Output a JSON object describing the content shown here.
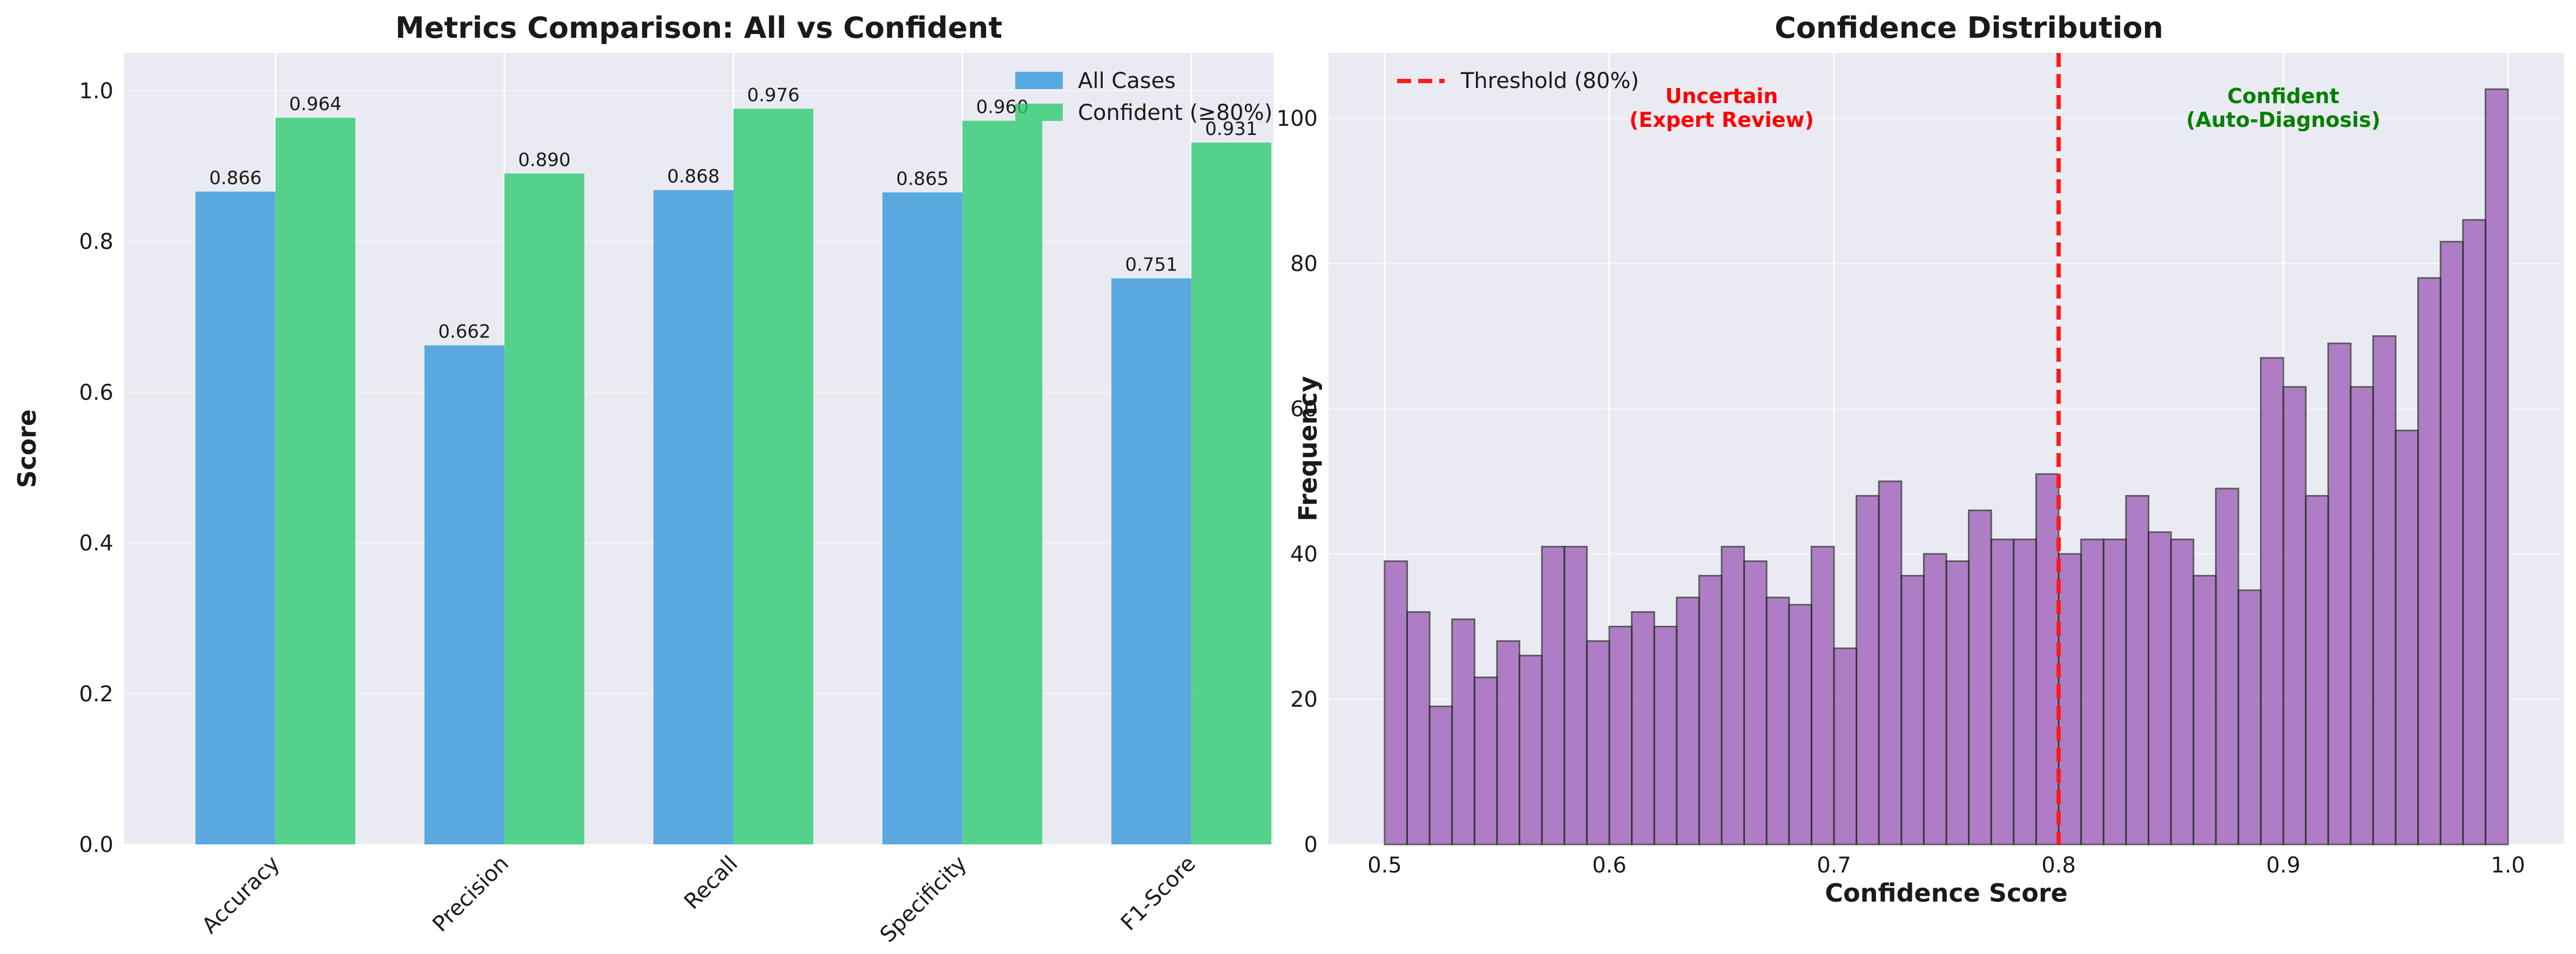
{
  "chart_data": [
    {
      "type": "bar",
      "title": "Metrics Comparison: All vs Confident",
      "xlabel": "",
      "ylabel": "Score",
      "ylim": [
        0,
        1.05
      ],
      "yticks": [
        "0.0",
        "0.2",
        "0.4",
        "0.6",
        "0.8",
        "1.0"
      ],
      "categories": [
        "Accuracy",
        "Precision",
        "Recall",
        "Specificity",
        "F1-Score"
      ],
      "series": [
        {
          "name": "All Cases",
          "color": "#3498db",
          "values": [
            0.866,
            0.662,
            0.868,
            0.865,
            0.751
          ],
          "labels": [
            "0.866",
            "0.662",
            "0.868",
            "0.865",
            "0.751"
          ]
        },
        {
          "name": "Confident (≥80%)",
          "color": "#2ecc71",
          "values": [
            0.964,
            0.89,
            0.976,
            0.96,
            0.931
          ],
          "labels": [
            "0.964",
            "0.890",
            "0.976",
            "0.960",
            "0.931"
          ]
        }
      ],
      "legend": "top-right",
      "grid": true
    },
    {
      "type": "bar",
      "subtype": "histogram",
      "title": "Confidence Distribution",
      "xlabel": "Confidence Score",
      "ylabel": "Frequency",
      "xlim": [
        0.475,
        1.025
      ],
      "ylim": [
        0,
        109
      ],
      "xticks": [
        "0.5",
        "0.6",
        "0.7",
        "0.8",
        "0.9",
        "1.0"
      ],
      "yticks": [
        "0",
        "20",
        "40",
        "60",
        "80",
        "100"
      ],
      "bin_start": 0.5,
      "bin_width": 0.01,
      "values": [
        39,
        32,
        19,
        31,
        23,
        28,
        26,
        41,
        41,
        28,
        30,
        32,
        30,
        34,
        37,
        41,
        39,
        34,
        33,
        41,
        27,
        48,
        50,
        37,
        40,
        39,
        46,
        42,
        42,
        51,
        40,
        42,
        42,
        48,
        43,
        42,
        37,
        49,
        35,
        67,
        63,
        48,
        69,
        63,
        70,
        57,
        78,
        83,
        86,
        104
      ],
      "bar_color": "#9b59b6",
      "edge_color": "#2b2b2b",
      "threshold": {
        "x": 0.8,
        "label": "Threshold (80%)",
        "color": "#ff1a1a"
      },
      "annotations": [
        {
          "line1": "Uncertain",
          "line2": "(Expert Review)",
          "color": "#ff0000",
          "x": 0.65,
          "y": 100
        },
        {
          "line1": "Confident",
          "line2": "(Auto-Diagnosis)",
          "color": "#008000",
          "x": 0.9,
          "y": 100
        }
      ],
      "legend": "top-left",
      "grid": true
    }
  ]
}
